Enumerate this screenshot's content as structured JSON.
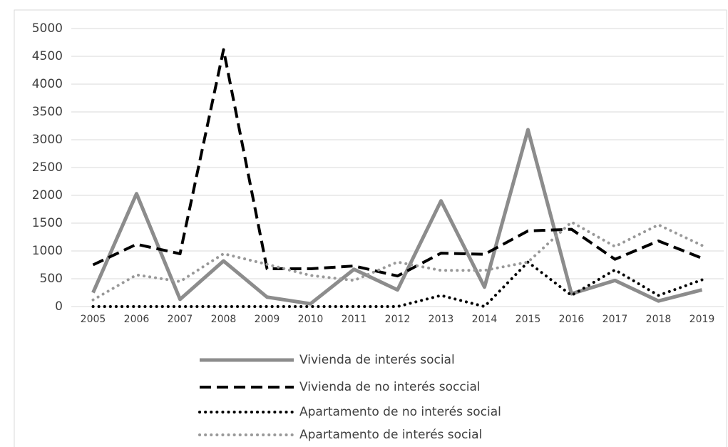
{
  "chart_data": {
    "type": "line",
    "categories": [
      "2005",
      "2006",
      "2007",
      "2008",
      "2009",
      "2010",
      "2011",
      "2012",
      "2013",
      "2014",
      "2015",
      "2016",
      "2017",
      "2018",
      "2019"
    ],
    "series": [
      {
        "name": "Vivienda de interés social",
        "color": "#8c8c8c",
        "dash": "solid",
        "values": [
          250,
          2030,
          130,
          820,
          170,
          50,
          670,
          300,
          1900,
          350,
          3180,
          230,
          470,
          100,
          300
        ]
      },
      {
        "name": "Vivienda de no interés soccial",
        "color": "#000000",
        "dash": "dashed",
        "values": [
          750,
          1120,
          950,
          4620,
          680,
          680,
          730,
          550,
          960,
          940,
          1360,
          1390,
          850,
          1180,
          870
        ]
      },
      {
        "name": "Apartamento de no interés social",
        "color": "#000000",
        "dash": "dotted",
        "values": [
          0,
          0,
          0,
          0,
          0,
          0,
          0,
          0,
          200,
          0,
          800,
          200,
          660,
          200,
          480
        ]
      },
      {
        "name": "Apartamento de interés social",
        "color": "#999999",
        "dash": "dotted",
        "values": [
          120,
          570,
          450,
          950,
          760,
          560,
          470,
          800,
          650,
          650,
          800,
          1520,
          1080,
          1470,
          1100
        ]
      }
    ],
    "ylim": [
      0,
      5000
    ],
    "yticks": [
      0,
      500,
      1000,
      1500,
      2000,
      2500,
      3000,
      3500,
      4000,
      4500,
      5000
    ],
    "grid": true,
    "legend": "bottom"
  }
}
